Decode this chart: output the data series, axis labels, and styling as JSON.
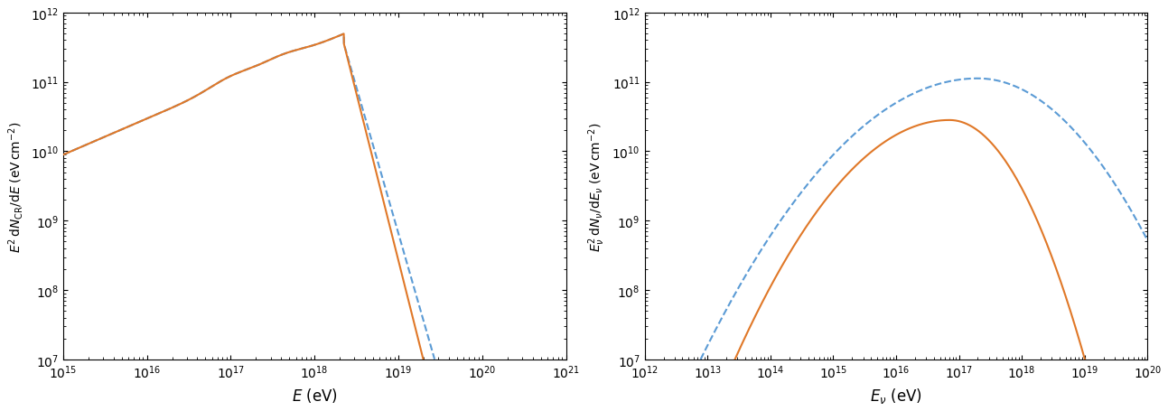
{
  "left_plot": {
    "xlabel": "$E$ (eV)",
    "ylabel": "$E^2\\,\\mathrm{d}N_{\\mathrm{CR}}/\\mathrm{d}E\\;(\\mathrm{eV\\,cm}^{-2})$",
    "xlim_log": [
      15,
      21
    ],
    "ylim_log": [
      7,
      12
    ],
    "orange_color": "#e07828",
    "blue_color": "#5b9bd5"
  },
  "right_plot": {
    "xlabel": "$E_\\nu$ (eV)",
    "ylabel": "$E_\\nu^2\\,\\mathrm{d}N_\\nu/\\mathrm{d}E_\\nu\\;(\\mathrm{eV\\,cm}^{-2})$",
    "xlim_log": [
      12,
      20
    ],
    "ylim_log": [
      7,
      12
    ],
    "orange_color": "#e07828",
    "blue_color": "#5b9bd5"
  },
  "figure_width": 12.93,
  "figure_height": 4.56,
  "dpi": 100
}
